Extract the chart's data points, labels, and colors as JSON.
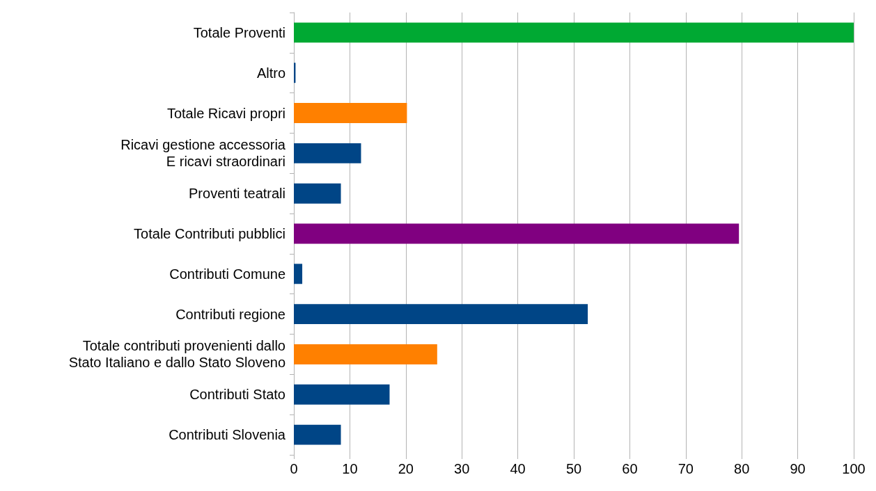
{
  "chart_data": {
    "type": "bar",
    "orientation": "horizontal",
    "categories": [
      "Totale Proventi",
      "Altro",
      "Totale Ricavi propri",
      "Ricavi gestione accessoria\nE ricavi straordinari",
      "Proventi teatrali",
      "Totale Contributi pubblici",
      "Contributi Comune",
      "Contributi regione",
      "Totale contributi provenienti dallo\nStato Italiano e dallo Stato Sloveno",
      "Contributi Stato",
      "Contributi Slovenia"
    ],
    "values": [
      100,
      0.3,
      20.2,
      12.0,
      8.4,
      79.5,
      1.5,
      52.5,
      25.6,
      17.1,
      8.4
    ],
    "colors": [
      "#00a933",
      "#004586",
      "#ff8000",
      "#004586",
      "#004586",
      "#800080",
      "#004586",
      "#004586",
      "#ff8000",
      "#004586",
      "#004586"
    ],
    "xlim": [
      0,
      100
    ],
    "xticks": [
      0,
      10,
      20,
      30,
      40,
      50,
      60,
      70,
      80,
      90,
      100
    ],
    "grid": "x"
  }
}
